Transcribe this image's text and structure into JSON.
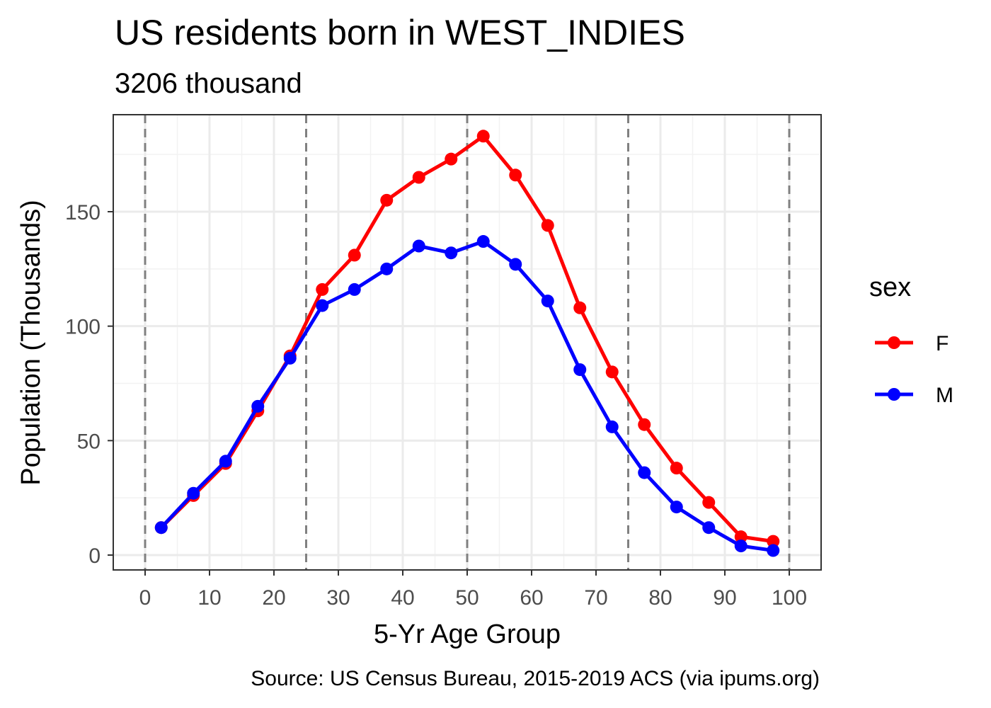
{
  "chart_data": {
    "type": "line",
    "title": "US residents born in WEST_INDIES",
    "subtitle": "3206 thousand",
    "xlabel": "5-Yr Age Group",
    "ylabel": "Population (Thousands)",
    "caption": "Source: US Census Bureau, 2015-2019 ACS (via ipums.org)",
    "xlim": [
      0,
      100
    ],
    "ylim": [
      0,
      185
    ],
    "x_ticks": [
      0,
      10,
      20,
      30,
      40,
      50,
      60,
      70,
      80,
      90,
      100
    ],
    "y_ticks": [
      0,
      50,
      100,
      150
    ],
    "vlines": [
      0,
      25,
      50,
      75,
      100
    ],
    "grid": true,
    "legend": {
      "title": "sex",
      "position": "right"
    },
    "x": [
      2.5,
      7.5,
      12.5,
      17.5,
      22.5,
      27.5,
      32.5,
      37.5,
      42.5,
      47.5,
      52.5,
      57.5,
      62.5,
      67.5,
      72.5,
      77.5,
      82.5,
      87.5,
      92.5,
      97.5
    ],
    "series": [
      {
        "name": "F",
        "color": "#ff0000",
        "values": [
          12,
          26,
          40,
          63,
          87,
          116,
          131,
          155,
          165,
          173,
          183,
          166,
          144,
          108,
          80,
          57,
          38,
          23,
          8,
          6
        ]
      },
      {
        "name": "M",
        "color": "#0000ff",
        "values": [
          12,
          27,
          41,
          65,
          86,
          109,
          116,
          125,
          135,
          132,
          137,
          127,
          111,
          81,
          56,
          36,
          21,
          12,
          4,
          2
        ]
      }
    ]
  }
}
